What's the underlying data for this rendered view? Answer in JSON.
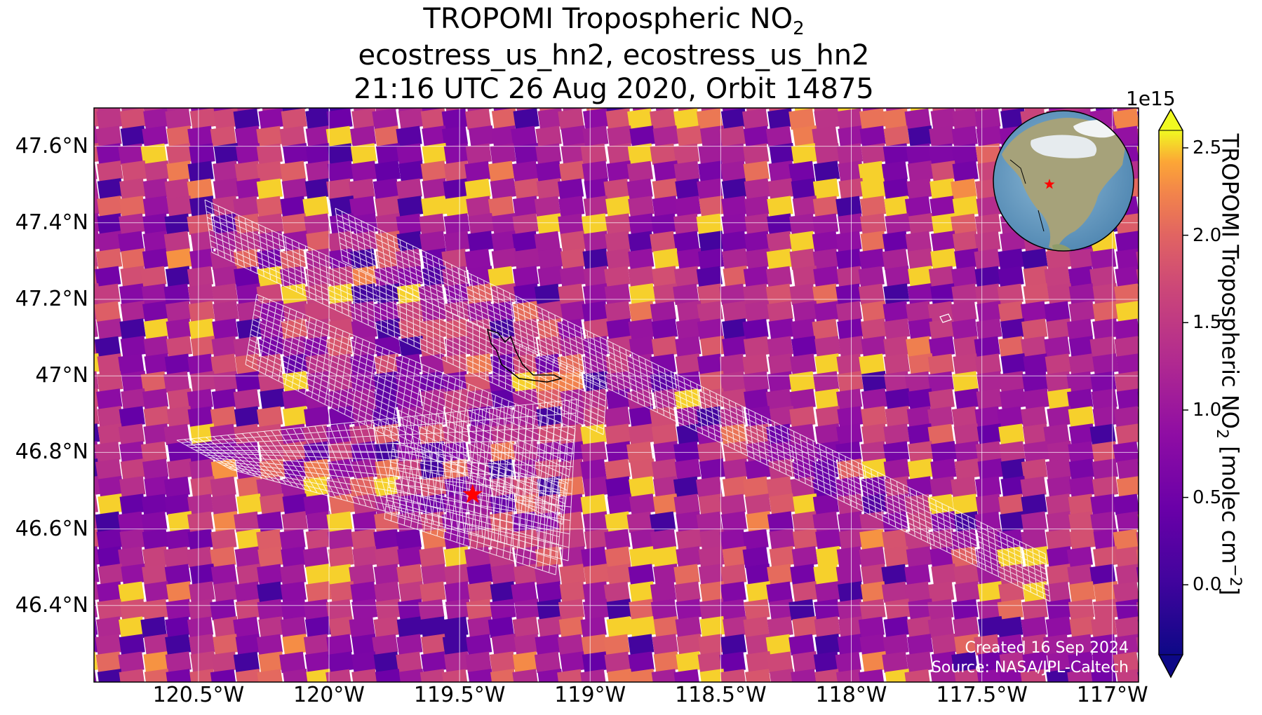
{
  "title": {
    "line1_prefix": "TROPOMI Tropospheric NO",
    "line1_sub": "2",
    "line2": "ecostress_us_hn2, ecostress_us_hn2",
    "line3": "21:16 UTC 26 Aug 2020, Orbit 14875"
  },
  "map": {
    "lon_range": [
      -120.9,
      -116.9
    ],
    "lat_range": [
      46.2,
      47.7
    ],
    "lat_ticks": [
      {
        "value": 47.6,
        "label": "47.6°N"
      },
      {
        "value": 47.4,
        "label": "47.4°N"
      },
      {
        "value": 47.2,
        "label": "47.2°N"
      },
      {
        "value": 47.0,
        "label": "47°N"
      },
      {
        "value": 46.8,
        "label": "46.8°N"
      },
      {
        "value": 46.6,
        "label": "46.6°N"
      },
      {
        "value": 46.4,
        "label": "46.4°N"
      }
    ],
    "lon_ticks": [
      {
        "value": -120.5,
        "label": "120.5°W"
      },
      {
        "value": -120.0,
        "label": "120°W"
      },
      {
        "value": -119.5,
        "label": "119.5°W"
      },
      {
        "value": -119.0,
        "label": "119°W"
      },
      {
        "value": -118.5,
        "label": "118.5°W"
      },
      {
        "value": -118.0,
        "label": "118°W"
      },
      {
        "value": -117.5,
        "label": "117.5°W"
      },
      {
        "value": -117.0,
        "label": "117°W"
      }
    ],
    "grid": true,
    "site_marker": {
      "lon": -119.45,
      "lat": 46.69,
      "color": "#ff0000",
      "symbol": "star"
    },
    "swath_color": "#ffffff",
    "inset": {
      "type": "globe",
      "marker_color": "#ff0000",
      "placement": "top-right"
    }
  },
  "colorbar": {
    "label_prefix": "TROPOMI Tropospheric NO",
    "label_sub": "2",
    "label_suffix": " [molec cm",
    "label_sup": "−2",
    "label_close": "]",
    "exponent": "1e15",
    "range": [
      -0.4,
      2.6
    ],
    "ticks": [
      {
        "value": 0.0,
        "label": "0.0"
      },
      {
        "value": 0.5,
        "label": "0.5"
      },
      {
        "value": 1.0,
        "label": "1.0"
      },
      {
        "value": 1.5,
        "label": "1.5"
      },
      {
        "value": 2.0,
        "label": "2.0"
      },
      {
        "value": 2.5,
        "label": "2.5"
      }
    ],
    "colormap": "plasma"
  },
  "credits": {
    "created": "Created 16 Sep 2024",
    "source": "Source: NASA/JPL-Caltech"
  }
}
